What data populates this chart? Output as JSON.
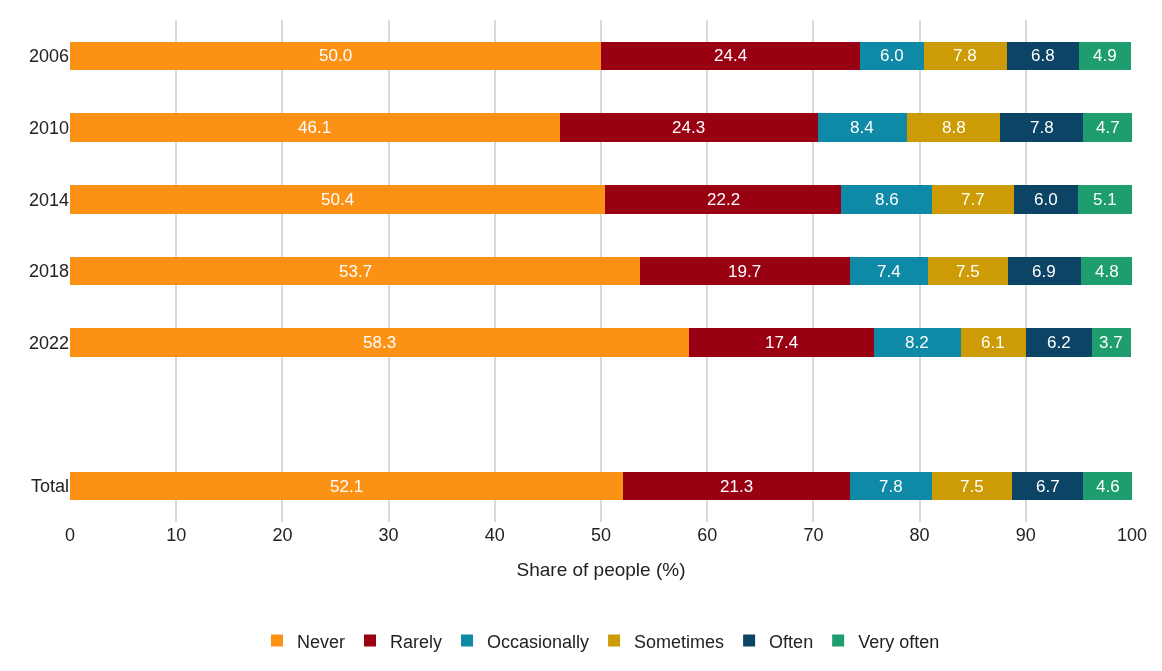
{
  "chart_data": {
    "type": "bar",
    "orientation": "horizontal",
    "stacked": true,
    "xlabel": "Share of people (%)",
    "categories": [
      "2006",
      "2010",
      "2014",
      "2018",
      "2022",
      null,
      "Total"
    ],
    "series": [
      {
        "name": "Never",
        "color": "#fb9216",
        "values": [
          50.0,
          46.1,
          50.4,
          53.7,
          58.3,
          null,
          52.1
        ],
        "value_labels": [
          "50.0",
          "46.1",
          "50.4",
          "53.7",
          "58.3",
          null,
          "52.1"
        ]
      },
      {
        "name": "Rarely",
        "color": "#990012",
        "values": [
          24.4,
          24.3,
          22.2,
          19.7,
          17.4,
          null,
          21.3
        ],
        "value_labels": [
          "24.4",
          "24.3",
          "22.2",
          "19.7",
          "17.4",
          null,
          "21.3"
        ]
      },
      {
        "name": "Occasionally",
        "color": "#0e8aa6",
        "values": [
          6.0,
          8.4,
          8.6,
          7.4,
          8.2,
          null,
          7.8
        ],
        "value_labels": [
          "6.0",
          "8.4",
          "8.6",
          "7.4",
          "8.2",
          null,
          "7.8"
        ]
      },
      {
        "name": "Sometimes",
        "color": "#cc9b05",
        "values": [
          7.8,
          8.8,
          7.7,
          7.5,
          6.1,
          null,
          7.5
        ],
        "value_labels": [
          "7.8",
          "8.8",
          "7.7",
          "7.5",
          "6.1",
          null,
          "7.5"
        ]
      },
      {
        "name": "Often",
        "color": "#0c4466",
        "values": [
          6.8,
          7.8,
          6.0,
          6.9,
          6.2,
          null,
          6.7
        ],
        "value_labels": [
          "6.8",
          "7.8",
          "6.0",
          "6.9",
          "6.2",
          null,
          "6.7"
        ]
      },
      {
        "name": "Very often",
        "color": "#1e9e6e",
        "values": [
          4.9,
          4.7,
          5.1,
          4.8,
          3.7,
          null,
          4.6
        ],
        "value_labels": [
          "4.9",
          "4.7",
          "5.1",
          "4.8",
          "3.7",
          null,
          "4.6"
        ]
      }
    ],
    "xlim": [
      0,
      100
    ],
    "xticks": [
      0,
      10,
      20,
      30,
      40,
      50,
      60,
      70,
      80,
      90,
      100
    ],
    "grid": "x",
    "legend": "bottom"
  }
}
